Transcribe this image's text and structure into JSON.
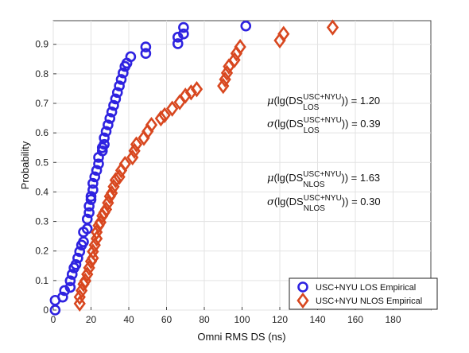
{
  "chart_data": {
    "type": "scatter",
    "xlabel": "Omni RMS DS (ns)",
    "ylabel": "Probability",
    "xlim": [
      0,
      200
    ],
    "ylim": [
      0,
      0.98
    ],
    "x_ticks": [
      0,
      20,
      40,
      60,
      80,
      100,
      120,
      140,
      160,
      180
    ],
    "y_ticks": [
      0,
      0.1,
      0.2,
      0.3,
      0.4,
      0.5,
      0.6,
      0.7,
      0.8,
      0.9
    ],
    "grid": true,
    "legend_position": "bottom-right",
    "series": [
      {
        "name": "USC+NYU LOS Empirical",
        "marker": "circle",
        "color": "#2e22e0",
        "points": [
          [
            1,
            0.0
          ],
          [
            1,
            0.033
          ],
          [
            5,
            0.044
          ],
          [
            6,
            0.066
          ],
          [
            9,
            0.077
          ],
          [
            9,
            0.099
          ],
          [
            10,
            0.121
          ],
          [
            11,
            0.143
          ],
          [
            12,
            0.154
          ],
          [
            13,
            0.176
          ],
          [
            14,
            0.198
          ],
          [
            15,
            0.22
          ],
          [
            16,
            0.231
          ],
          [
            16,
            0.264
          ],
          [
            18,
            0.275
          ],
          [
            18,
            0.308
          ],
          [
            19,
            0.33
          ],
          [
            19,
            0.352
          ],
          [
            20,
            0.374
          ],
          [
            20,
            0.385
          ],
          [
            21,
            0.407
          ],
          [
            21,
            0.429
          ],
          [
            22,
            0.451
          ],
          [
            23,
            0.473
          ],
          [
            24,
            0.495
          ],
          [
            24,
            0.517
          ],
          [
            26,
            0.539
          ],
          [
            26,
            0.55
          ],
          [
            27,
            0.561
          ],
          [
            27,
            0.583
          ],
          [
            28,
            0.605
          ],
          [
            29,
            0.627
          ],
          [
            30,
            0.649
          ],
          [
            31,
            0.671
          ],
          [
            32,
            0.693
          ],
          [
            33,
            0.715
          ],
          [
            34,
            0.737
          ],
          [
            35,
            0.759
          ],
          [
            36,
            0.781
          ],
          [
            37,
            0.803
          ],
          [
            38,
            0.825
          ],
          [
            39,
            0.836
          ],
          [
            41,
            0.858
          ],
          [
            49,
            0.869
          ],
          [
            49,
            0.891
          ],
          [
            66,
            0.902
          ],
          [
            66,
            0.924
          ],
          [
            69,
            0.935
          ],
          [
            69,
            0.957
          ],
          [
            102,
            0.962
          ]
        ]
      },
      {
        "name": "USC+NYU NLOS Empirical",
        "marker": "diamond",
        "color": "#d8471f",
        "points": [
          [
            14,
            0.022
          ],
          [
            14,
            0.044
          ],
          [
            15,
            0.066
          ],
          [
            16,
            0.088
          ],
          [
            17,
            0.099
          ],
          [
            18,
            0.121
          ],
          [
            19,
            0.143
          ],
          [
            20,
            0.165
          ],
          [
            21,
            0.176
          ],
          [
            21,
            0.198
          ],
          [
            22,
            0.22
          ],
          [
            23,
            0.242
          ],
          [
            23,
            0.264
          ],
          [
            24,
            0.286
          ],
          [
            25,
            0.297
          ],
          [
            26,
            0.319
          ],
          [
            27,
            0.33
          ],
          [
            28,
            0.341
          ],
          [
            29,
            0.363
          ],
          [
            30,
            0.385
          ],
          [
            31,
            0.396
          ],
          [
            32,
            0.418
          ],
          [
            33,
            0.44
          ],
          [
            35,
            0.451
          ],
          [
            36,
            0.473
          ],
          [
            38,
            0.495
          ],
          [
            42,
            0.517
          ],
          [
            43,
            0.539
          ],
          [
            44,
            0.561
          ],
          [
            48,
            0.583
          ],
          [
            50,
            0.605
          ],
          [
            52,
            0.627
          ],
          [
            57,
            0.649
          ],
          [
            59,
            0.66
          ],
          [
            63,
            0.682
          ],
          [
            67,
            0.704
          ],
          [
            70,
            0.726
          ],
          [
            73,
            0.737
          ],
          [
            76,
            0.748
          ],
          [
            90,
            0.759
          ],
          [
            91,
            0.781
          ],
          [
            92,
            0.803
          ],
          [
            93,
            0.825
          ],
          [
            96,
            0.847
          ],
          [
            97,
            0.869
          ],
          [
            99,
            0.891
          ],
          [
            120,
            0.913
          ],
          [
            122,
            0.935
          ],
          [
            148,
            0.957
          ]
        ]
      }
    ],
    "annotations": [
      {
        "prefix": "μ",
        "pre": "(lg(DS",
        "sup": "USC+NYU",
        "sub": "LOS",
        "post": ")) = 1.20"
      },
      {
        "prefix": "σ",
        "pre": "(lg(DS",
        "sup": "USC+NYU",
        "sub": "LOS",
        "post": ")) = 0.39"
      },
      {
        "prefix": "μ",
        "pre": "(lg(DS",
        "sup": "USC+NYU",
        "sub": "NLOS",
        "post": ")) = 1.63"
      },
      {
        "prefix": "σ",
        "pre": "(lg(DS",
        "sup": "USC+NYU",
        "sub": "NLOS",
        "post": ")) = 0.30"
      }
    ]
  }
}
